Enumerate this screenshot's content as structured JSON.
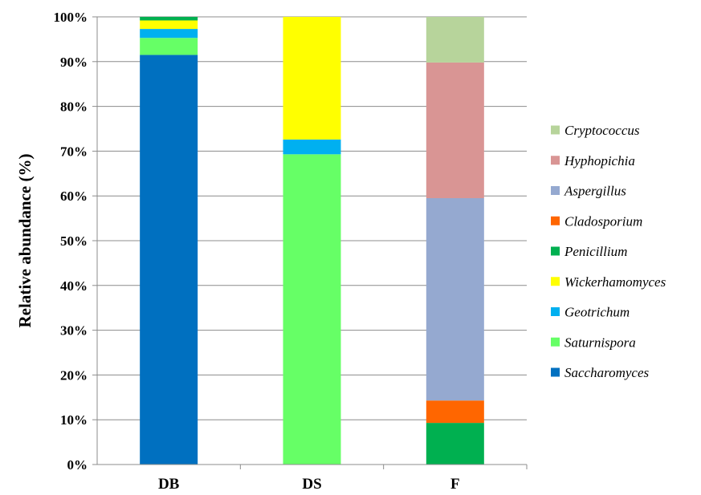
{
  "chart_data": {
    "type": "bar",
    "stacked": true,
    "title": "",
    "xlabel": "",
    "ylabel": "Relative abundance (%)",
    "ylim": [
      0,
      100
    ],
    "yticks": [
      "0%",
      "10%",
      "20%",
      "30%",
      "40%",
      "50%",
      "60%",
      "70%",
      "80%",
      "90%",
      "100%"
    ],
    "grid": true,
    "legend_position": "right",
    "categories": [
      "DB",
      "DS",
      "F"
    ],
    "series": [
      {
        "name": "Saccharomyces",
        "color": "#0070C0",
        "values": [
          91.5,
          0,
          0
        ]
      },
      {
        "name": "Saturnispora",
        "color": "#66FF66",
        "values": [
          3.8,
          69.3,
          0
        ]
      },
      {
        "name": "Geotrichum",
        "color": "#00B0F0",
        "values": [
          2.0,
          3.3,
          0
        ]
      },
      {
        "name": "Wickerhamomyces",
        "color": "#FFFF00",
        "values": [
          1.9,
          27.4,
          0
        ]
      },
      {
        "name": "Penicillium",
        "color": "#00B050",
        "values": [
          0.8,
          0,
          9.3
        ]
      },
      {
        "name": "Cladosporium",
        "color": "#FF6600",
        "values": [
          0,
          0,
          5.0
        ]
      },
      {
        "name": "Aspergillus",
        "color": "#95A9D0",
        "values": [
          0,
          0,
          45.2
        ]
      },
      {
        "name": "Hyphopichia",
        "color": "#D99594",
        "values": [
          0,
          0,
          30.3
        ]
      },
      {
        "name": "Cryptococcus",
        "color": "#B7D49B",
        "values": [
          0,
          0,
          10.2
        ]
      }
    ]
  }
}
